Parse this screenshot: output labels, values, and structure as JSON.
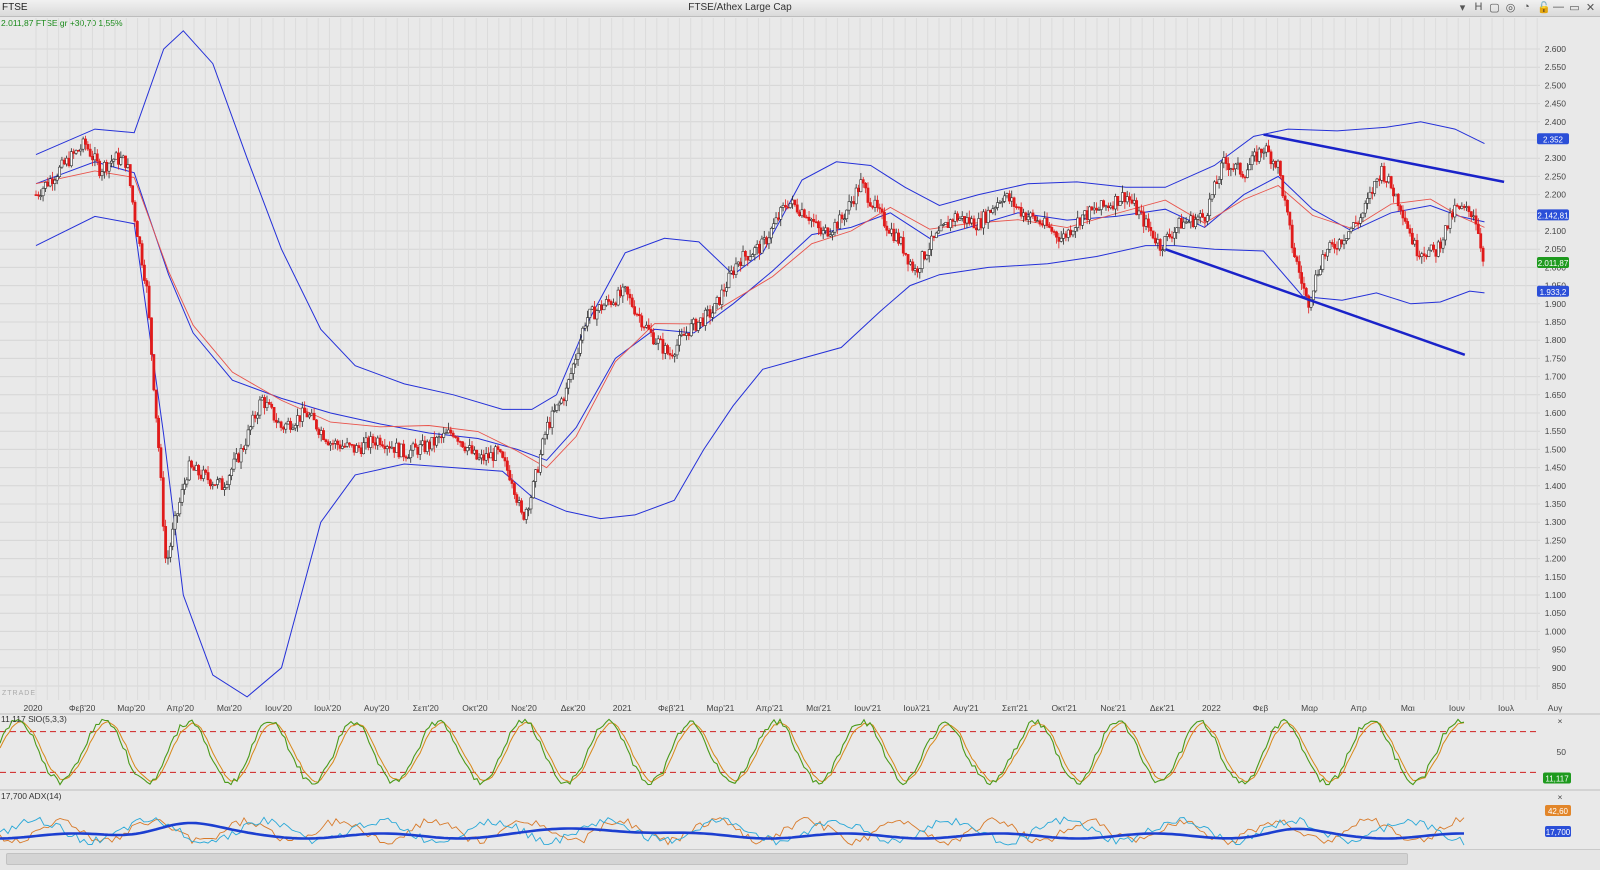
{
  "window": {
    "symbol": "FTSE",
    "title": "FTSE/Athex Large Cap",
    "controls": [
      "▾",
      "H",
      "▢",
      "◎",
      "◔",
      "🔓",
      "—",
      "▭",
      "✕"
    ]
  },
  "quote_line": "2.011,87 FTSE.gr +30,70 1,55%",
  "watermark": "ZTRADE",
  "colors": {
    "bollinger": "#2430d8",
    "ma": "#e8534b",
    "candle_up": "#2a2a2a",
    "candle_down": "#e01b1b",
    "trendline": "#1a23c9",
    "stoch_k": "#4a9a1a",
    "stoch_d": "#d8881a",
    "stoch_level": "#d02020",
    "adx": "#1c3fd0",
    "di_plus": "#29a8d8",
    "di_minus": "#d87a2a",
    "price_tag_green": "#1e9a1e",
    "price_tag_blue": "#2b4fd8"
  },
  "chart_data": [
    {
      "type": "candlestick",
      "title": "FTSE/Athex Large Cap",
      "x_tick_labels": [
        "2020",
        "Φεβ'20",
        "Μαρ'20",
        "Απρ'20",
        "Μαι'20",
        "Ιουν'20",
        "Ιουλ'20",
        "Αυγ'20",
        "Σεπ'20",
        "Οκτ'20",
        "Νοε'20",
        "Δεκ'20",
        "2021",
        "Φεβ'21",
        "Μαρ'21",
        "Απρ'21",
        "Μαι'21",
        "Ιουν'21",
        "Ιουλ'21",
        "Αυγ'21",
        "Σεπ'21",
        "Οκτ'21",
        "Νοε'21",
        "Δεκ'21",
        "2022",
        "Φεβ",
        "Μαρ",
        "Απρ",
        "Μαι",
        "Ιουν",
        "Ιουλ",
        "Αυγ"
      ],
      "y_tick_labels": [
        "2.600",
        "2.550",
        "2.500",
        "2.450",
        "2.400",
        "2.350",
        "2.300",
        "2.250",
        "2.200",
        "2.150",
        "2.100",
        "2.050",
        "2.000",
        "1.950",
        "1.900",
        "1.850",
        "1.800",
        "1.750",
        "1.700",
        "1.650",
        "1.600",
        "1.550",
        "1.500",
        "1.450",
        "1.400",
        "1.350",
        "1.300",
        "1.250",
        "1.200",
        "1.150",
        "1.100",
        "1.050",
        "1.000",
        "950",
        "900",
        "850"
      ],
      "ylim": [
        830,
        2650
      ],
      "close_path": [
        {
          "m": 0,
          "v": 2200
        },
        {
          "m": 0.7,
          "v": 2300
        },
        {
          "m": 1.0,
          "v": 2340
        },
        {
          "m": 1.3,
          "v": 2270
        },
        {
          "m": 1.6,
          "v": 2300
        },
        {
          "m": 1.85,
          "v": 2290
        },
        {
          "m": 2.0,
          "v": 2150
        },
        {
          "m": 2.25,
          "v": 1950
        },
        {
          "m": 2.5,
          "v": 1500
        },
        {
          "m": 2.65,
          "v": 1180
        },
        {
          "m": 2.8,
          "v": 1280
        },
        {
          "m": 3.1,
          "v": 1450
        },
        {
          "m": 3.5,
          "v": 1420
        },
        {
          "m": 3.8,
          "v": 1400
        },
        {
          "m": 4.2,
          "v": 1500
        },
        {
          "m": 4.6,
          "v": 1640
        },
        {
          "m": 5.0,
          "v": 1560
        },
        {
          "m": 5.5,
          "v": 1600
        },
        {
          "m": 6.0,
          "v": 1520
        },
        {
          "m": 6.5,
          "v": 1500
        },
        {
          "m": 7.0,
          "v": 1530
        },
        {
          "m": 7.5,
          "v": 1490
        },
        {
          "m": 8.0,
          "v": 1510
        },
        {
          "m": 8.5,
          "v": 1550
        },
        {
          "m": 9.0,
          "v": 1470
        },
        {
          "m": 9.4,
          "v": 1490
        },
        {
          "m": 9.7,
          "v": 1420
        },
        {
          "m": 9.9,
          "v": 1310
        },
        {
          "m": 10.1,
          "v": 1380
        },
        {
          "m": 10.4,
          "v": 1560
        },
        {
          "m": 10.8,
          "v": 1660
        },
        {
          "m": 11.2,
          "v": 1860
        },
        {
          "m": 11.6,
          "v": 1900
        },
        {
          "m": 12.0,
          "v": 1930
        },
        {
          "m": 12.5,
          "v": 1820
        },
        {
          "m": 12.9,
          "v": 1760
        },
        {
          "m": 13.3,
          "v": 1830
        },
        {
          "m": 13.8,
          "v": 1880
        },
        {
          "m": 14.3,
          "v": 2020
        },
        {
          "m": 14.8,
          "v": 2060
        },
        {
          "m": 15.3,
          "v": 2180
        },
        {
          "m": 15.7,
          "v": 2150
        },
        {
          "m": 16.0,
          "v": 2090
        },
        {
          "m": 16.4,
          "v": 2130
        },
        {
          "m": 16.8,
          "v": 2230
        },
        {
          "m": 17.2,
          "v": 2140
        },
        {
          "m": 17.6,
          "v": 2070
        },
        {
          "m": 17.9,
          "v": 1990
        },
        {
          "m": 18.2,
          "v": 2060
        },
        {
          "m": 18.7,
          "v": 2140
        },
        {
          "m": 19.2,
          "v": 2120
        },
        {
          "m": 19.7,
          "v": 2200
        },
        {
          "m": 20.1,
          "v": 2150
        },
        {
          "m": 20.5,
          "v": 2120
        },
        {
          "m": 20.9,
          "v": 2080
        },
        {
          "m": 21.3,
          "v": 2140
        },
        {
          "m": 21.8,
          "v": 2170
        },
        {
          "m": 22.2,
          "v": 2200
        },
        {
          "m": 22.6,
          "v": 2120
        },
        {
          "m": 22.9,
          "v": 2060
        },
        {
          "m": 23.3,
          "v": 2120
        },
        {
          "m": 23.8,
          "v": 2140
        },
        {
          "m": 24.2,
          "v": 2290
        },
        {
          "m": 24.6,
          "v": 2260
        },
        {
          "m": 25.0,
          "v": 2330
        },
        {
          "m": 25.3,
          "v": 2280
        },
        {
          "m": 25.6,
          "v": 2050
        },
        {
          "m": 25.9,
          "v": 1900
        },
        {
          "m": 26.2,
          "v": 2030
        },
        {
          "m": 26.6,
          "v": 2080
        },
        {
          "m": 27.0,
          "v": 2140
        },
        {
          "m": 27.4,
          "v": 2270
        },
        {
          "m": 27.8,
          "v": 2170
        },
        {
          "m": 28.1,
          "v": 2050
        },
        {
          "m": 28.5,
          "v": 2040
        },
        {
          "m": 28.9,
          "v": 2160
        },
        {
          "m": 29.3,
          "v": 2150
        },
        {
          "m": 29.5,
          "v": 2012
        }
      ],
      "bollinger_upper": [
        {
          "m": 0,
          "v": 2310
        },
        {
          "m": 1.2,
          "v": 2380
        },
        {
          "m": 2.0,
          "v": 2370
        },
        {
          "m": 2.6,
          "v": 2600
        },
        {
          "m": 3.0,
          "v": 2650
        },
        {
          "m": 3.6,
          "v": 2560
        },
        {
          "m": 4.3,
          "v": 2300
        },
        {
          "m": 5.0,
          "v": 2050
        },
        {
          "m": 5.8,
          "v": 1830
        },
        {
          "m": 6.5,
          "v": 1730
        },
        {
          "m": 7.5,
          "v": 1680
        },
        {
          "m": 8.5,
          "v": 1650
        },
        {
          "m": 9.5,
          "v": 1610
        },
        {
          "m": 10.1,
          "v": 1610
        },
        {
          "m": 10.6,
          "v": 1650
        },
        {
          "m": 11.2,
          "v": 1840
        },
        {
          "m": 12.0,
          "v": 2040
        },
        {
          "m": 12.8,
          "v": 2080
        },
        {
          "m": 13.5,
          "v": 2070
        },
        {
          "m": 14.2,
          "v": 1980
        },
        {
          "m": 14.8,
          "v": 2040
        },
        {
          "m": 15.6,
          "v": 2240
        },
        {
          "m": 16.3,
          "v": 2290
        },
        {
          "m": 17.0,
          "v": 2280
        },
        {
          "m": 17.7,
          "v": 2220
        },
        {
          "m": 18.4,
          "v": 2170
        },
        {
          "m": 19.2,
          "v": 2200
        },
        {
          "m": 20.2,
          "v": 2230
        },
        {
          "m": 21.2,
          "v": 2235
        },
        {
          "m": 22.2,
          "v": 2220
        },
        {
          "m": 23.0,
          "v": 2220
        },
        {
          "m": 24.0,
          "v": 2280
        },
        {
          "m": 24.8,
          "v": 2360
        },
        {
          "m": 25.5,
          "v": 2380
        },
        {
          "m": 26.5,
          "v": 2375
        },
        {
          "m": 27.5,
          "v": 2385
        },
        {
          "m": 28.2,
          "v": 2400
        },
        {
          "m": 28.9,
          "v": 2380
        },
        {
          "m": 29.5,
          "v": 2340
        }
      ],
      "bollinger_middle": [
        {
          "m": 0,
          "v": 2230
        },
        {
          "m": 1.2,
          "v": 2290
        },
        {
          "m": 2.0,
          "v": 2260
        },
        {
          "m": 2.7,
          "v": 1980
        },
        {
          "m": 3.2,
          "v": 1820
        },
        {
          "m": 4.0,
          "v": 1690
        },
        {
          "m": 5.0,
          "v": 1640
        },
        {
          "m": 6.0,
          "v": 1600
        },
        {
          "m": 7.0,
          "v": 1570
        },
        {
          "m": 8.0,
          "v": 1545
        },
        {
          "m": 9.0,
          "v": 1530
        },
        {
          "m": 9.8,
          "v": 1500
        },
        {
          "m": 10.4,
          "v": 1470
        },
        {
          "m": 11.0,
          "v": 1560
        },
        {
          "m": 11.8,
          "v": 1750
        },
        {
          "m": 12.6,
          "v": 1830
        },
        {
          "m": 13.4,
          "v": 1820
        },
        {
          "m": 14.2,
          "v": 1900
        },
        {
          "m": 15.0,
          "v": 1990
        },
        {
          "m": 15.8,
          "v": 2090
        },
        {
          "m": 16.6,
          "v": 2110
        },
        {
          "m": 17.4,
          "v": 2150
        },
        {
          "m": 18.2,
          "v": 2080
        },
        {
          "m": 19.0,
          "v": 2110
        },
        {
          "m": 20.0,
          "v": 2150
        },
        {
          "m": 21.0,
          "v": 2130
        },
        {
          "m": 22.0,
          "v": 2140
        },
        {
          "m": 23.0,
          "v": 2160
        },
        {
          "m": 23.8,
          "v": 2110
        },
        {
          "m": 24.6,
          "v": 2200
        },
        {
          "m": 25.3,
          "v": 2250
        },
        {
          "m": 26.0,
          "v": 2160
        },
        {
          "m": 26.8,
          "v": 2100
        },
        {
          "m": 27.6,
          "v": 2150
        },
        {
          "m": 28.4,
          "v": 2170
        },
        {
          "m": 29.0,
          "v": 2140
        },
        {
          "m": 29.5,
          "v": 2125
        }
      ],
      "bollinger_lower": [
        {
          "m": 0,
          "v": 2060
        },
        {
          "m": 1.2,
          "v": 2140
        },
        {
          "m": 2.0,
          "v": 2120
        },
        {
          "m": 2.6,
          "v": 1540
        },
        {
          "m": 3.0,
          "v": 1100
        },
        {
          "m": 3.6,
          "v": 880
        },
        {
          "m": 4.3,
          "v": 820
        },
        {
          "m": 5.0,
          "v": 900
        },
        {
          "m": 5.8,
          "v": 1300
        },
        {
          "m": 6.5,
          "v": 1430
        },
        {
          "m": 7.5,
          "v": 1460
        },
        {
          "m": 8.5,
          "v": 1450
        },
        {
          "m": 9.5,
          "v": 1440
        },
        {
          "m": 10.1,
          "v": 1370
        },
        {
          "m": 10.8,
          "v": 1330
        },
        {
          "m": 11.5,
          "v": 1310
        },
        {
          "m": 12.2,
          "v": 1320
        },
        {
          "m": 13.0,
          "v": 1360
        },
        {
          "m": 13.6,
          "v": 1500
        },
        {
          "m": 14.2,
          "v": 1620
        },
        {
          "m": 14.8,
          "v": 1720
        },
        {
          "m": 15.6,
          "v": 1750
        },
        {
          "m": 16.4,
          "v": 1780
        },
        {
          "m": 17.2,
          "v": 1880
        },
        {
          "m": 17.8,
          "v": 1950
        },
        {
          "m": 18.4,
          "v": 1980
        },
        {
          "m": 19.4,
          "v": 2000
        },
        {
          "m": 20.6,
          "v": 2010
        },
        {
          "m": 21.6,
          "v": 2030
        },
        {
          "m": 22.6,
          "v": 2060
        },
        {
          "m": 23.2,
          "v": 2060
        },
        {
          "m": 24.0,
          "v": 2050
        },
        {
          "m": 25.0,
          "v": 2045
        },
        {
          "m": 25.8,
          "v": 1920
        },
        {
          "m": 26.6,
          "v": 1910
        },
        {
          "m": 27.3,
          "v": 1930
        },
        {
          "m": 28.0,
          "v": 1900
        },
        {
          "m": 28.6,
          "v": 1905
        },
        {
          "m": 29.2,
          "v": 1935
        },
        {
          "m": 29.5,
          "v": 1930
        }
      ],
      "trendlines": [
        {
          "from": {
            "m": 25.0,
            "v": 2365
          },
          "to": {
            "m": 29.9,
            "v": 2235
          }
        },
        {
          "from": {
            "m": 23.0,
            "v": 2050
          },
          "to": {
            "m": 29.1,
            "v": 1760
          }
        }
      ],
      "price_tags": [
        {
          "text": "2.352",
          "v": 2352,
          "kind": "blue"
        },
        {
          "text": "2.142,81",
          "v": 2143,
          "kind": "blue"
        },
        {
          "text": "2.011,87",
          "v": 2012,
          "kind": "green"
        },
        {
          "text": "1.933,2",
          "v": 1933,
          "kind": "blue"
        }
      ]
    },
    {
      "type": "line",
      "title": "11,117 SlO(5,3,3)",
      "y_tick_labels": [
        "50"
      ],
      "levels": [
        80,
        20
      ],
      "ylim": [
        0,
        100
      ],
      "last_value_tag": "11,117"
    },
    {
      "type": "line",
      "title": "17,700 ADX(14)",
      "last_value_tags": [
        "42,60",
        "17,700"
      ]
    }
  ]
}
